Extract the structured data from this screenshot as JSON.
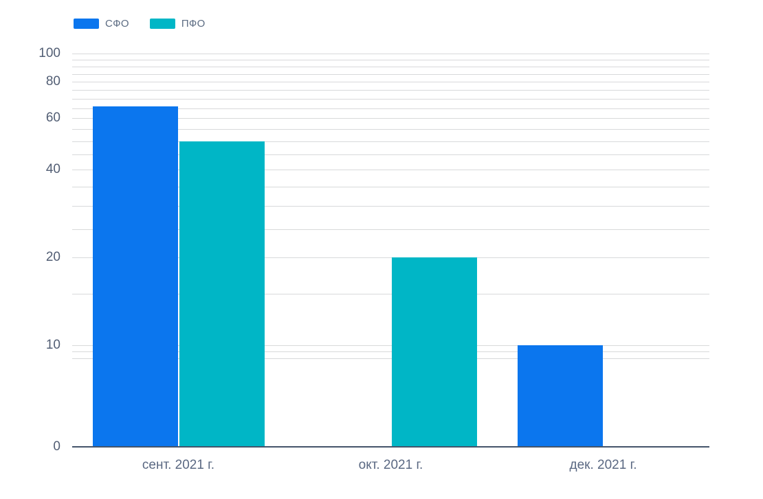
{
  "chart_data": {
    "type": "bar",
    "title": "",
    "xlabel": "",
    "ylabel": "",
    "categories": [
      "сент. 2021 г.",
      "окт. 2021 г.",
      "дек. 2021 г."
    ],
    "series": [
      {
        "name": "СФО",
        "color": "#0b76ee",
        "values": [
          66,
          null,
          10
        ]
      },
      {
        "name": "ПФО",
        "color": "#00b6c6",
        "values": [
          50,
          20,
          null
        ]
      }
    ],
    "yscale": "logarithmic",
    "ylim": [
      0,
      100
    ],
    "ytick_labels": [
      "100",
      "80",
      "60",
      "40",
      "20",
      "10",
      "0"
    ],
    "ytick_values": [
      100,
      80,
      60,
      40,
      20,
      10,
      0
    ],
    "gridline_values": [
      100,
      95,
      90,
      85,
      80,
      75,
      70,
      65,
      60,
      55,
      50,
      45,
      40,
      35,
      30,
      25,
      20,
      15,
      10,
      9.5,
      9
    ],
    "grid": true,
    "legend_position": "top-left",
    "colors": {
      "grid": "#d8d9da",
      "axis_line": "#44546a",
      "y_label_text": "#525e74",
      "x_label_text": "#5a6882",
      "legend_text": "#5b6b82",
      "background": "#ffffff"
    }
  }
}
